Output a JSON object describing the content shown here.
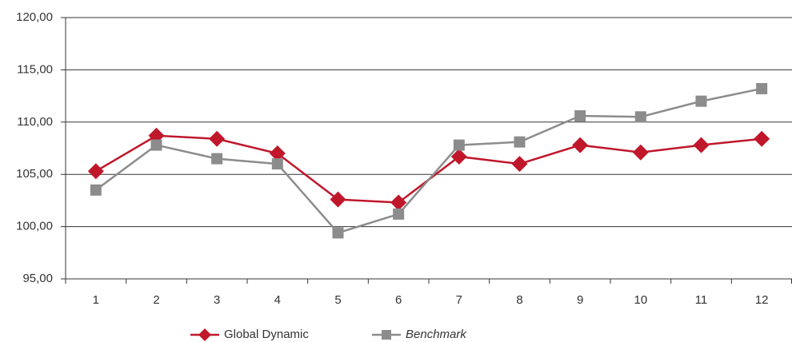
{
  "chart_data": {
    "type": "line",
    "categories": [
      "1",
      "2",
      "3",
      "4",
      "5",
      "6",
      "7",
      "8",
      "9",
      "10",
      "11",
      "12"
    ],
    "series": [
      {
        "name": "Global Dynamic",
        "color": "#c0172b",
        "values": [
          105.3,
          108.7,
          108.4,
          107.0,
          102.6,
          102.3,
          106.7,
          106.0,
          107.8,
          107.1,
          107.8,
          108.4
        ]
      },
      {
        "name": "Benchmark",
        "color": "#8c8c8c",
        "values": [
          103.5,
          107.8,
          106.5,
          106.0,
          99.4,
          101.2,
          107.8,
          108.1,
          110.6,
          110.5,
          112.0,
          113.2
        ]
      }
    ],
    "ylim": [
      95,
      120
    ],
    "yticks": [
      {
        "value": 95,
        "label": "95,00"
      },
      {
        "value": 100,
        "label": "100,00"
      },
      {
        "value": 105,
        "label": "105,00"
      },
      {
        "value": 110,
        "label": "110,00"
      },
      {
        "value": 115,
        "label": "115,00"
      },
      {
        "value": 120,
        "label": "120,00"
      }
    ],
    "grid": true,
    "legend": "bottom"
  }
}
